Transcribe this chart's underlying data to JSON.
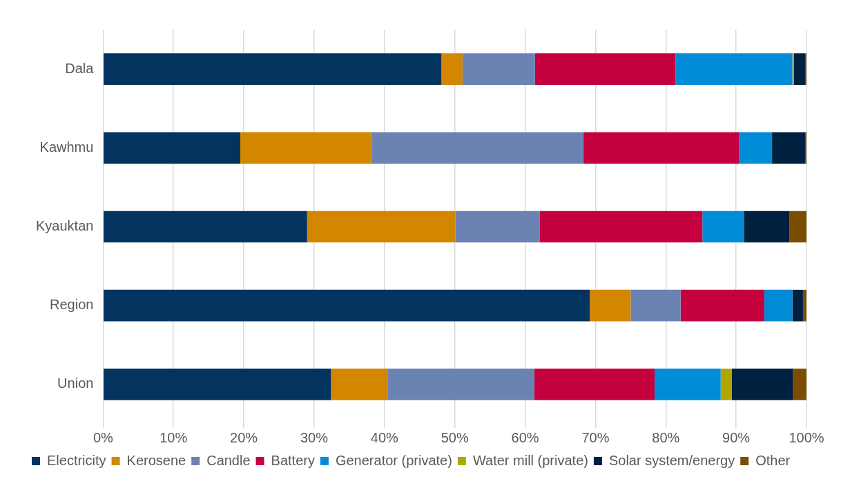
{
  "chart_data": {
    "type": "bar",
    "orientation": "horizontal",
    "stacked": true,
    "categories": [
      "Dala",
      "Kawhmu",
      "Kyauktan",
      "Region",
      "Union"
    ],
    "series": [
      {
        "name": "Electricity",
        "color": "#03345f",
        "values": [
          48.1,
          19.5,
          29.0,
          69.2,
          32.4
        ]
      },
      {
        "name": "Kerosene",
        "color": "#d38600",
        "values": [
          3.0,
          18.6,
          21.1,
          5.8,
          8.1
        ]
      },
      {
        "name": "Candle",
        "color": "#6b83b3",
        "values": [
          10.3,
          30.2,
          12.0,
          7.1,
          20.8
        ]
      },
      {
        "name": "Battery",
        "color": "#c4003f",
        "values": [
          20.0,
          22.1,
          23.1,
          11.9,
          17.1
        ]
      },
      {
        "name": "Generator (private)",
        "color": "#008cd6",
        "values": [
          16.6,
          4.7,
          5.9,
          4.0,
          9.4
        ]
      },
      {
        "name": "Water mill (private)",
        "color": "#b0a700",
        "values": [
          0.2,
          0,
          0,
          0,
          1.6
        ]
      },
      {
        "name": "Solar system/energy",
        "color": "#00203f",
        "values": [
          1.6,
          4.7,
          6.5,
          1.5,
          8.7
        ]
      },
      {
        "name": "Other",
        "color": "#7b4d00",
        "values": [
          0.2,
          0.2,
          2.4,
          0.5,
          1.9
        ]
      }
    ],
    "xlim": [
      0,
      100
    ],
    "xticks": [
      {
        "value": 0,
        "label": "0%"
      },
      {
        "value": 10,
        "label": "10%"
      },
      {
        "value": 20,
        "label": "20%"
      },
      {
        "value": 30,
        "label": "30%"
      },
      {
        "value": 40,
        "label": "40%"
      },
      {
        "value": 50,
        "label": "50%"
      },
      {
        "value": 60,
        "label": "60%"
      },
      {
        "value": 70,
        "label": "70%"
      },
      {
        "value": 80,
        "label": "80%"
      },
      {
        "value": 90,
        "label": "90%"
      },
      {
        "value": 100,
        "label": "100%"
      }
    ],
    "grid": "x",
    "legend": "bottom"
  }
}
